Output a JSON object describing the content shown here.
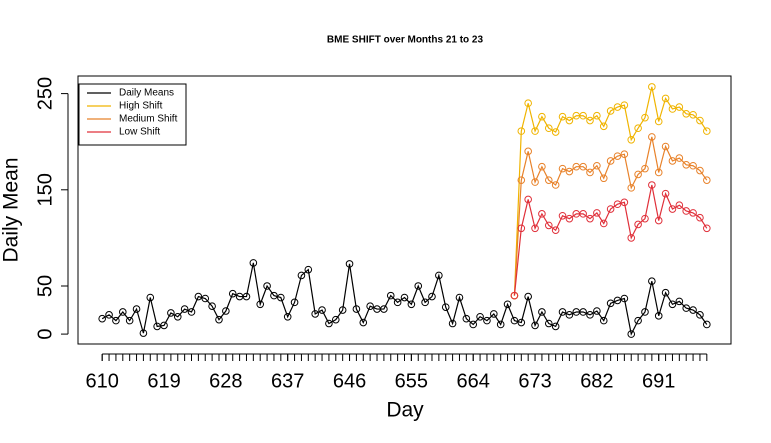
{
  "chart_data": {
    "type": "line",
    "title": "BME SHIFT over Months 21 to 23",
    "xlabel": "Day",
    "ylabel": "Daily Mean",
    "x": [
      610,
      611,
      612,
      613,
      614,
      615,
      616,
      617,
      618,
      619,
      620,
      621,
      622,
      623,
      624,
      625,
      626,
      627,
      628,
      629,
      630,
      631,
      632,
      633,
      634,
      635,
      636,
      637,
      638,
      639,
      640,
      641,
      642,
      643,
      644,
      645,
      646,
      647,
      648,
      649,
      650,
      651,
      652,
      653,
      654,
      655,
      656,
      657,
      658,
      659,
      660,
      661,
      662,
      663,
      664,
      665,
      666,
      667,
      668,
      669,
      670,
      671,
      672,
      673,
      674,
      675,
      676,
      677,
      678,
      679,
      680,
      681,
      682,
      683,
      684,
      685,
      686,
      687,
      688,
      689,
      690,
      691,
      692,
      693,
      694,
      695,
      696,
      697,
      698
    ],
    "series": [
      {
        "name": "Daily Means",
        "color": "#000000",
        "values": [
          16,
          20,
          14,
          23,
          14,
          26,
          1,
          38,
          8,
          9,
          22,
          18,
          26,
          23,
          39,
          37,
          29,
          15,
          24,
          42,
          39,
          39,
          74,
          31,
          50,
          40,
          38,
          18,
          33,
          61,
          67,
          21,
          25,
          11,
          15,
          25,
          73,
          26,
          12,
          29,
          26,
          26,
          40,
          33,
          38,
          31,
          50,
          33,
          39,
          61,
          28,
          11,
          38,
          16,
          10,
          18,
          14,
          21,
          10,
          31,
          14,
          12,
          39,
          9,
          23,
          11,
          8,
          23,
          20,
          23,
          23,
          20,
          24,
          14,
          32,
          35,
          37,
          0,
          14,
          23,
          55,
          19,
          43,
          31,
          34,
          27,
          25,
          20,
          10
        ]
      },
      {
        "name": "High Shift",
        "color": "#f0b400",
        "values": [
          null,
          null,
          null,
          null,
          null,
          null,
          null,
          null,
          null,
          null,
          null,
          null,
          null,
          null,
          null,
          null,
          null,
          null,
          null,
          null,
          null,
          null,
          null,
          null,
          null,
          null,
          null,
          null,
          null,
          null,
          null,
          null,
          null,
          null,
          null,
          null,
          null,
          null,
          null,
          null,
          null,
          null,
          null,
          null,
          null,
          null,
          null,
          null,
          null,
          null,
          null,
          null,
          null,
          null,
          null,
          null,
          null,
          null,
          null,
          null,
          40,
          211,
          240,
          211,
          226,
          214,
          210,
          226,
          222,
          227,
          227,
          222,
          227,
          216,
          232,
          236,
          238,
          202,
          214,
          225,
          257,
          221,
          245,
          234,
          236,
          229,
          228,
          222,
          211
        ]
      },
      {
        "name": "Medium Shift",
        "color": "#e8822a",
        "values": [
          null,
          null,
          null,
          null,
          null,
          null,
          null,
          null,
          null,
          null,
          null,
          null,
          null,
          null,
          null,
          null,
          null,
          null,
          null,
          null,
          null,
          null,
          null,
          null,
          null,
          null,
          null,
          null,
          null,
          null,
          null,
          null,
          null,
          null,
          null,
          null,
          null,
          null,
          null,
          null,
          null,
          null,
          null,
          null,
          null,
          null,
          null,
          null,
          null,
          null,
          null,
          null,
          null,
          null,
          null,
          null,
          null,
          null,
          null,
          null,
          40,
          160,
          190,
          158,
          174,
          160,
          155,
          172,
          169,
          174,
          174,
          168,
          175,
          162,
          180,
          185,
          187,
          152,
          166,
          172,
          205,
          168,
          195,
          180,
          183,
          176,
          175,
          170,
          160
        ]
      },
      {
        "name": "Low Shift",
        "color": "#e0303a",
        "values": [
          null,
          null,
          null,
          null,
          null,
          null,
          null,
          null,
          null,
          null,
          null,
          null,
          null,
          null,
          null,
          null,
          null,
          null,
          null,
          null,
          null,
          null,
          null,
          null,
          null,
          null,
          null,
          null,
          null,
          null,
          null,
          null,
          null,
          null,
          null,
          null,
          null,
          null,
          null,
          null,
          null,
          null,
          null,
          null,
          null,
          null,
          null,
          null,
          null,
          null,
          null,
          null,
          null,
          null,
          null,
          null,
          null,
          null,
          null,
          null,
          40,
          110,
          140,
          110,
          125,
          113,
          108,
          123,
          120,
          125,
          125,
          120,
          126,
          115,
          130,
          135,
          137,
          100,
          114,
          120,
          155,
          118,
          146,
          130,
          134,
          128,
          126,
          121,
          110
        ]
      }
    ],
    "xlim": [
      606.48,
      701.52
    ],
    "xticks": [
      610,
      619,
      628,
      637,
      646,
      655,
      664,
      673,
      682,
      691
    ],
    "ylim": [
      -10.3,
      268.3
    ],
    "yticks": [
      0,
      50,
      150,
      250
    ],
    "legend": "top-left",
    "grid": false
  }
}
